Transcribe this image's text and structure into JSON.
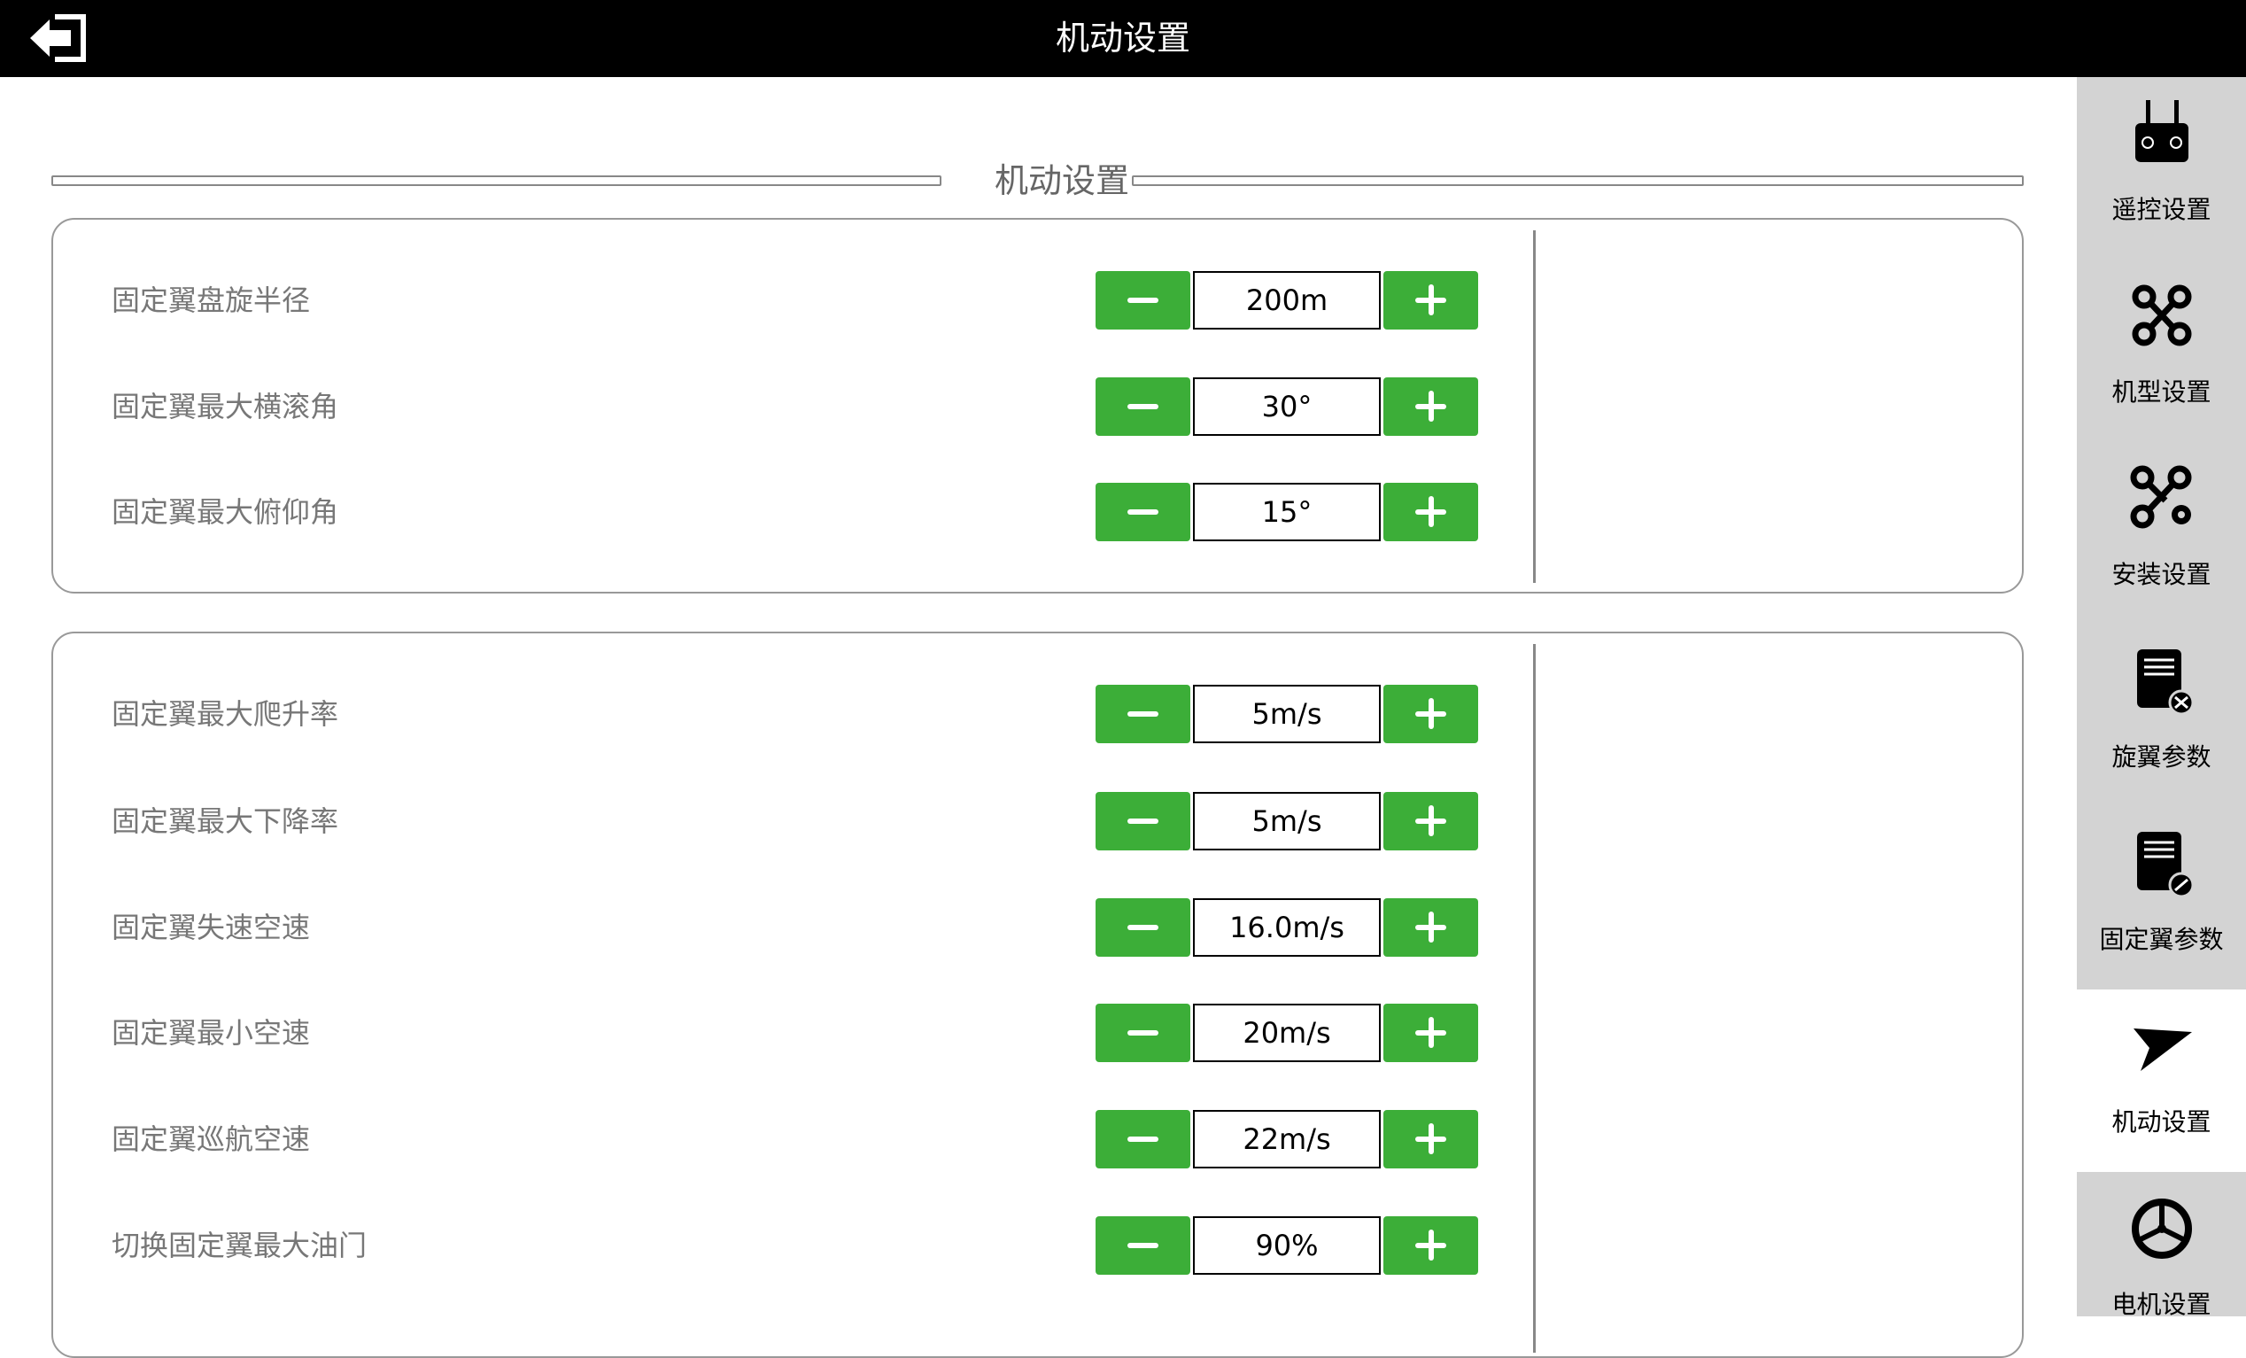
{
  "header": {
    "title": "机动设置",
    "back_icon": "back-arrow-icon"
  },
  "section": {
    "title": "机动设置"
  },
  "panel1": [
    {
      "label": "固定翼盘旋半径",
      "value": "200m"
    },
    {
      "label": "固定翼最大横滚角",
      "value": "30°"
    },
    {
      "label": "固定翼最大俯仰角",
      "value": "15°"
    }
  ],
  "panel2": [
    {
      "label": "固定翼最大爬升率",
      "value": "5m/s"
    },
    {
      "label": "固定翼最大下降率",
      "value": "5m/s"
    },
    {
      "label": "固定翼失速空速",
      "value": "16.0m/s"
    },
    {
      "label": "固定翼最小空速",
      "value": "20m/s"
    },
    {
      "label": "固定翼巡航空速",
      "value": "22m/s"
    },
    {
      "label": "切换固定翼最大油门",
      "value": "90%"
    }
  ],
  "sidebar": [
    {
      "label": "遥控设置",
      "icon": "remote-controller-icon"
    },
    {
      "label": "机型设置",
      "icon": "quadcopter-icon"
    },
    {
      "label": "安装设置",
      "icon": "drone-gear-icon"
    },
    {
      "label": "旋翼参数",
      "icon": "rotor-params-icon"
    },
    {
      "label": "固定翼参数",
      "icon": "fixed-wing-params-icon"
    },
    {
      "label": "机动设置",
      "icon": "maneuver-icon",
      "active": true
    },
    {
      "label": "电机设置",
      "icon": "motor-icon"
    }
  ],
  "colors": {
    "accent": "#3cae38",
    "header": "#000000",
    "sidebar": "#d3d3d3"
  }
}
